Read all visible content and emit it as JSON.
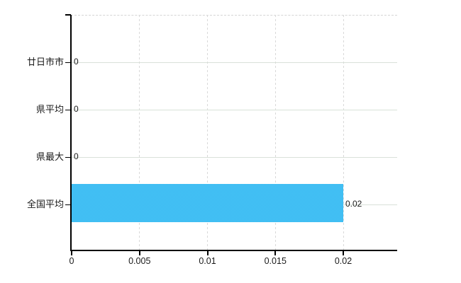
{
  "chart_data": {
    "type": "bar",
    "orientation": "horizontal",
    "title": "",
    "xlabel": "",
    "ylabel": "",
    "categories": [
      "廿日市市",
      "県平均",
      "県最大",
      "全国平均"
    ],
    "values": [
      0,
      0,
      0,
      0.02
    ],
    "value_labels": [
      "0",
      "0",
      "0",
      "0.02"
    ],
    "xlim": [
      0,
      0.024
    ],
    "xticks": [
      0,
      0.005,
      0.01,
      0.015,
      0.02
    ],
    "xtick_labels": [
      "0",
      "0.005",
      "0.01",
      "0.015",
      "0.02"
    ],
    "grid": true,
    "legend": "none",
    "colors": {
      "bar": "#3ebcf0",
      "bar_dither_dark": "#35b5ec",
      "bar_dither_light": "#4dc8fa",
      "axis": "#000000",
      "vertical_gridline": "#d9d9d9",
      "horizontal_gridline": "#d9e1d9",
      "text": "#1a1a1a",
      "background": "#ffffff"
    }
  }
}
